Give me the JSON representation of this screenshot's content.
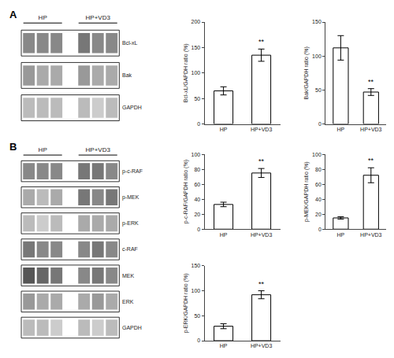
{
  "chart_data": [
    {
      "type": "blot",
      "title": "A",
      "categories": [
        "HP",
        "HP+VD3"
      ],
      "series": [
        {
          "name": "Bcl-xL",
          "colors": [
            "#888888",
            "#888888",
            "#888888",
            "#777777",
            "#888888",
            "#888888"
          ]
        },
        {
          "name": "Bak",
          "colors": [
            "#999999",
            "#aaaaaa",
            "#aaaaaa",
            "#999999",
            "#aaaaaa",
            "#aaaaaa"
          ]
        },
        {
          "name": "GAPDH",
          "colors": [
            "#bbbbbb",
            "#bbbbbb",
            "#bbbbbb",
            "#bbbbbb",
            "#cccccc",
            "#bbbbbb"
          ]
        }
      ]
    },
    {
      "type": "bar",
      "ylabel": "Bcl-xL/GAPDH ratio (%)",
      "categories": [
        "HP",
        "HP+VD3"
      ],
      "values": [
        65,
        135
      ],
      "errors": [
        8,
        12
      ],
      "color": "#ffffff",
      "ylim": [
        0,
        200
      ],
      "yticks": [
        0,
        50,
        100,
        150,
        200
      ],
      "grid": false,
      "annotations": [
        {
          "text": "**",
          "x": "HP+VD3"
        }
      ]
    },
    {
      "type": "bar",
      "ylabel": "Bak/GAPDH ratio (%)",
      "categories": [
        "HP",
        "HP+VD3"
      ],
      "values": [
        112,
        47
      ],
      "errors": [
        18,
        5
      ],
      "color": "#ffffff",
      "ylim": [
        0,
        150
      ],
      "yticks": [
        0,
        50,
        100,
        150
      ],
      "grid": false,
      "annotations": [
        {
          "text": "**",
          "x": "HP+VD3"
        }
      ]
    },
    {
      "type": "blot",
      "title": "B",
      "categories": [
        "HP",
        "HP+VD3"
      ],
      "series": [
        {
          "name": "p-c-RAF",
          "colors": [
            "#888888",
            "#888888",
            "#888888",
            "#777777",
            "#777777",
            "#888888"
          ]
        },
        {
          "name": "p-MEK",
          "colors": [
            "#aaaaaa",
            "#bbbbbb",
            "#aaaaaa",
            "#777777",
            "#888888",
            "#777777"
          ]
        },
        {
          "name": "p-ERK",
          "colors": [
            "#bbbbbb",
            "#cccccc",
            "#bbbbbb",
            "#aaaaaa",
            "#aaaaaa",
            "#aaaaaa"
          ]
        },
        {
          "name": "c-RAF",
          "colors": [
            "#777777",
            "#888888",
            "#888888",
            "#888888",
            "#777777",
            "#888888"
          ]
        },
        {
          "name": "MEK",
          "colors": [
            "#555555",
            "#666666",
            "#777777",
            "#888888",
            "#777777",
            "#888888"
          ]
        },
        {
          "name": "ERK",
          "colors": [
            "#999999",
            "#aaaaaa",
            "#aaaaaa",
            "#aaaaaa",
            "#999999",
            "#aaaaaa"
          ]
        },
        {
          "name": "GAPDH",
          "colors": [
            "#bbbbbb",
            "#bbbbbb",
            "#cccccc",
            "#bbbbbb",
            "#cccccc",
            "#bbbbbb"
          ]
        }
      ]
    },
    {
      "type": "bar",
      "ylabel": "p-c-RAF/GAPDH ratio (%)",
      "categories": [
        "HP",
        "HP+VD3"
      ],
      "values": [
        33,
        75
      ],
      "errors": [
        3,
        6
      ],
      "color": "#ffffff",
      "ylim": [
        0,
        100
      ],
      "yticks": [
        0,
        20,
        40,
        60,
        80,
        100
      ],
      "grid": false,
      "annotations": [
        {
          "text": "**",
          "x": "HP+VD3"
        }
      ]
    },
    {
      "type": "bar",
      "ylabel": "p-MEK/GAPDH ratio (%)",
      "categories": [
        "HP",
        "HP+VD3"
      ],
      "values": [
        15,
        72
      ],
      "errors": [
        1.5,
        10
      ],
      "color": "#ffffff",
      "ylim": [
        0,
        100
      ],
      "yticks": [
        0,
        20,
        40,
        60,
        80,
        100
      ],
      "grid": false,
      "annotations": [
        {
          "text": "**",
          "x": "HP+VD3"
        }
      ]
    },
    {
      "type": "bar",
      "ylabel": "p-ERK/GAPDH ratio (%)",
      "categories": [
        "HP",
        "HP+VD3"
      ],
      "values": [
        29,
        92
      ],
      "errors": [
        5,
        8
      ],
      "color": "#ffffff",
      "ylim": [
        0,
        150
      ],
      "yticks": [
        0,
        50,
        100,
        150
      ],
      "grid": false,
      "annotations": [
        {
          "text": "**",
          "x": "HP+VD3"
        }
      ]
    }
  ]
}
